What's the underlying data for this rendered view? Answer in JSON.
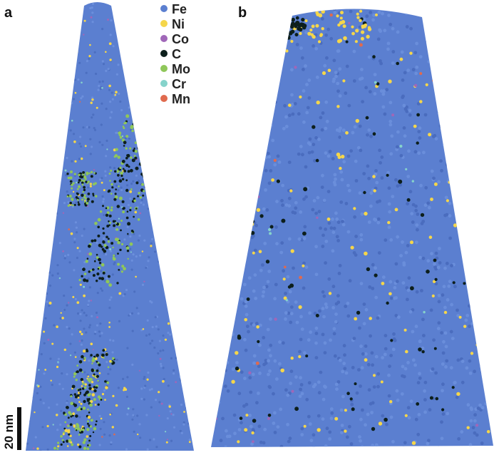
{
  "panels": [
    {
      "label": "a"
    },
    {
      "label": "b"
    }
  ],
  "legend": [
    {
      "element": "Fe",
      "color": "#5b7fd0"
    },
    {
      "element": "Ni",
      "color": "#f5d64a"
    },
    {
      "element": "Co",
      "color": "#a067b8"
    },
    {
      "element": "C",
      "color": "#0d1f1c"
    },
    {
      "element": "Mo",
      "color": "#8fc75a"
    },
    {
      "element": "Cr",
      "color": "#86d3cb"
    },
    {
      "element": "Mn",
      "color": "#e06a4e"
    }
  ],
  "scale_bar": {
    "label": "20 nm"
  }
}
